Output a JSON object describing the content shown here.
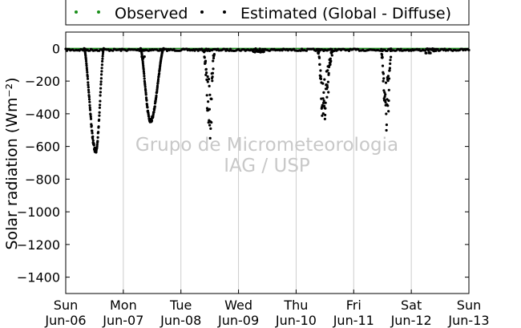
{
  "chart_data": {
    "type": "scatter",
    "title": "",
    "xlabel": "",
    "ylabel": "Solar radiation (Wm⁻²)",
    "ylim": [
      -1500,
      100
    ],
    "xlim": [
      0,
      7
    ],
    "grid": "vertical only",
    "legend_placement": "top, outside plot",
    "yticks": [
      0,
      -200,
      -400,
      -600,
      -800,
      -1000,
      -1200,
      -1400
    ],
    "xticks": [
      {
        "x": 0,
        "day": "Sun",
        "date": "Jun-06"
      },
      {
        "x": 1,
        "day": "Mon",
        "date": "Jun-07"
      },
      {
        "x": 2,
        "day": "Tue",
        "date": "Jun-08"
      },
      {
        "x": 3,
        "day": "Wed",
        "date": "Jun-09"
      },
      {
        "x": 4,
        "day": "Thu",
        "date": "Jun-10"
      },
      {
        "x": 5,
        "day": "Fri",
        "date": "Jun-11"
      },
      {
        "x": 6,
        "day": "Sat",
        "date": "Jun-12"
      },
      {
        "x": 7,
        "day": "Sun",
        "date": "Jun-13"
      }
    ],
    "series": [
      {
        "name": "Observed",
        "color": "#1a8f1a",
        "values": [
          [
            0,
            0
          ],
          [
            7,
            0
          ]
        ]
      },
      {
        "name": "Estimated (Global - Diffuse)",
        "color": "#000000",
        "dips": [
          {
            "start": 0.32,
            "end": 0.66,
            "peak": 0.52,
            "min": -630
          },
          {
            "start": 1.3,
            "end": 1.7,
            "peak": 1.47,
            "min": -445
          },
          {
            "start": 2.4,
            "end": 2.58,
            "peak": 2.5,
            "min": -540
          },
          {
            "start": 4.38,
            "end": 4.63,
            "peak": 4.48,
            "min": -430
          },
          {
            "start": 5.48,
            "end": 5.65,
            "peak": 5.57,
            "min": -500
          }
        ],
        "minor_dips": [
          {
            "start": 3.25,
            "end": 3.45,
            "min": -25
          },
          {
            "start": 1.32,
            "end": 1.4,
            "min": -70
          },
          {
            "start": 6.25,
            "end": 6.45,
            "min": -30
          }
        ]
      }
    ]
  },
  "watermark": {
    "line1": "Grupo de Micrometeorologia",
    "line2": "IAG / USP"
  }
}
